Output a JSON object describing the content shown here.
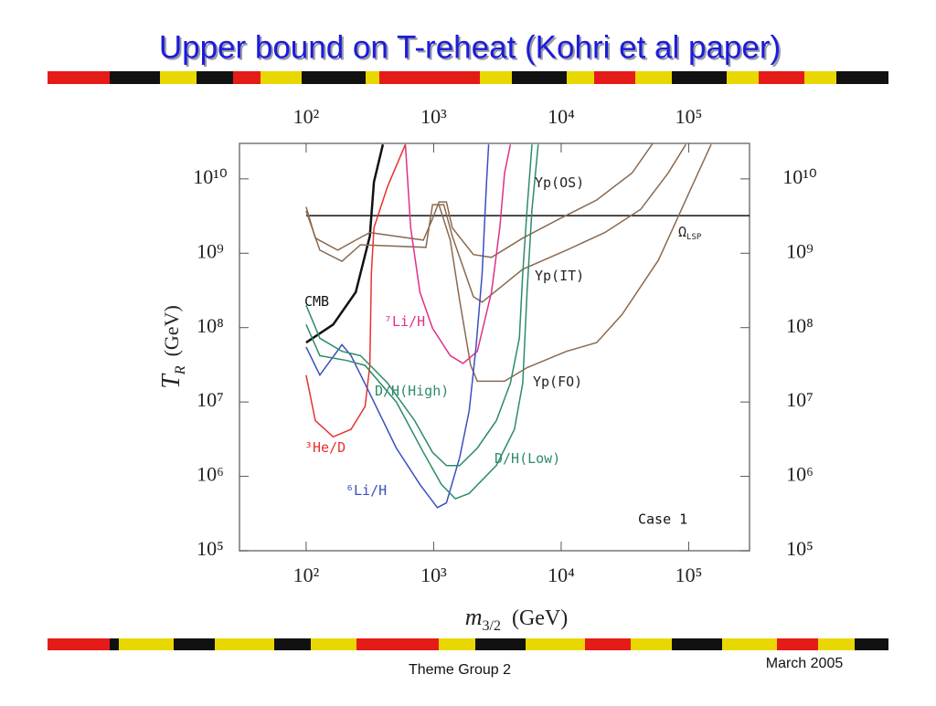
{
  "slide": {
    "title": "Upper bound on T-reheat (Kohri et al paper)",
    "footer": "Theme Group 2",
    "date": "March 2005"
  },
  "chart_data": {
    "type": "line",
    "x_log": true,
    "y_log": true,
    "xlim": [
      30,
      300000
    ],
    "ylim": [
      100000,
      30000000000
    ],
    "xticks": [
      {
        "value": 100,
        "label": "10²"
      },
      {
        "value": 1000,
        "label": "10³"
      },
      {
        "value": 10000,
        "label": "10⁴"
      },
      {
        "value": 100000,
        "label": "10⁵"
      }
    ],
    "yticks": [
      {
        "value": 100000,
        "label": "10⁵"
      },
      {
        "value": 1000000,
        "label": "10⁶"
      },
      {
        "value": 10000000,
        "label": "10⁷"
      },
      {
        "value": 100000000,
        "label": "10⁸"
      },
      {
        "value": 1000000000,
        "label": "10⁹"
      },
      {
        "value": 10000000000,
        "label": "10¹⁰"
      }
    ],
    "x_label": {
      "symbol": "m",
      "subscript": "3/2",
      "unit": "(GeV)"
    },
    "y_label": {
      "symbol": "T",
      "subscript": "R",
      "unit": "(GeV)"
    },
    "annotation": "Case 1",
    "series": [
      {
        "name": "CMB",
        "color": "#111111",
        "x": [
          100,
          163,
          245,
          316,
          340,
          400
        ],
        "y": [
          63000000,
          110000000,
          300000000,
          1700000000,
          9100000000,
          29000000000
        ]
      },
      {
        "name": "Ω",
        "subscript": "LSP",
        "color": "#111111",
        "x": [
          100,
          300000
        ],
        "y": [
          3200000000,
          3200000000
        ]
      },
      {
        "name": "Yp(OS)",
        "color": "#8a6a50",
        "x": [
          100,
          118,
          177,
          245,
          316,
          830,
          980,
          1100,
          1260,
          1400,
          2050,
          2840,
          5000,
          9700,
          19000,
          36000,
          53000
        ],
        "y": [
          4200000000,
          1600000000,
          1100000000,
          1500000000,
          1900000000,
          1500000000,
          2900000000,
          4900000000,
          4900000000,
          2200000000,
          960000000,
          880000000,
          1600000000,
          2900000000,
          5200000000,
          12000000000,
          31000000000
        ]
      },
      {
        "name": "Yp(IT)",
        "color": "#8a6a50",
        "x": [
          100,
          128,
          191,
          267,
          870,
          980,
          1200,
          1400,
          2050,
          2400,
          5000,
          11000,
          22000,
          42000,
          69000,
          95000
        ],
        "y": [
          3700000000,
          1100000000,
          780000000,
          1300000000,
          1200000000,
          4500000000,
          4500000000,
          1700000000,
          260000000,
          220000000,
          610000000,
          1100000000,
          1900000000,
          3900000000,
          12000000000,
          29000000000
        ]
      },
      {
        "name": "Yp(FO)",
        "color": "#8a6a50",
        "x": [
          1100,
          1350,
          1600,
          1950,
          2200,
          3600,
          5400,
          11000,
          19000,
          30000,
          58000,
          110000,
          150000
        ],
        "y": [
          4500000000,
          1500000000,
          230000000,
          31000000,
          19000000,
          19000000,
          29000000,
          48000000,
          63000000,
          150000000,
          810000000,
          9100000000,
          29000000000
        ]
      },
      {
        "name": "⁷Li/H",
        "color": "#e0308a",
        "x": [
          600,
          660,
          780,
          980,
          1350,
          1700,
          2200,
          2840,
          3300,
          3600,
          4000
        ],
        "y": [
          29000000000,
          2200000000,
          300000000,
          98000000,
          42000000,
          33000000,
          48000000,
          300000000,
          2200000000,
          12000000000,
          29000000000
        ]
      },
      {
        "name": "³He/D",
        "color": "#e8322c",
        "x": [
          100,
          118,
          163,
          225,
          290,
          316,
          325,
          340,
          435,
          600
        ],
        "y": [
          23000000,
          5600000,
          3400000,
          4300000,
          8700000,
          31000000,
          540000000,
          2200000000,
          7900000000,
          29000000000
        ]
      },
      {
        "name": "⁶Li/H",
        "color": "#3a4fbf",
        "x": [
          100,
          128,
          191,
          225,
          316,
          510,
          780,
          1070,
          1260,
          1600,
          1900,
          2150,
          2400,
          2600,
          2700
        ],
        "y": [
          55000000,
          23000000,
          59000000,
          42000000,
          13000000,
          2400000,
          780000,
          380000,
          440000,
          1800000,
          7600000,
          55000000,
          540000000,
          9100000000,
          29000000000
        ]
      },
      {
        "name": "D/H(High)",
        "color": "#2e8b6a",
        "x": [
          100,
          128,
          191,
          267,
          435,
          710,
          980,
          1260,
          1600,
          2200,
          3100,
          4000,
          4700,
          5000,
          5400,
          5900
        ],
        "y": [
          200000000,
          72000000,
          48000000,
          42000000,
          18000000,
          5600000,
          2100000,
          1400000,
          1400000,
          2400000,
          5600000,
          18000000,
          72000000,
          540000000,
          3900000000,
          29000000000
        ]
      },
      {
        "name": "D/H(Low)",
        "color": "#2e8b6a",
        "x": [
          100,
          128,
          210,
          290,
          510,
          830,
          1150,
          1480,
          1900,
          3100,
          4300,
          5000,
          5400,
          5900,
          6600
        ],
        "y": [
          110000000,
          42000000,
          36000000,
          31000000,
          10000000,
          2100000,
          780000,
          500000,
          590000,
          1400000,
          4300000,
          18000000,
          300000000,
          3900000000,
          29000000000
        ]
      }
    ]
  }
}
